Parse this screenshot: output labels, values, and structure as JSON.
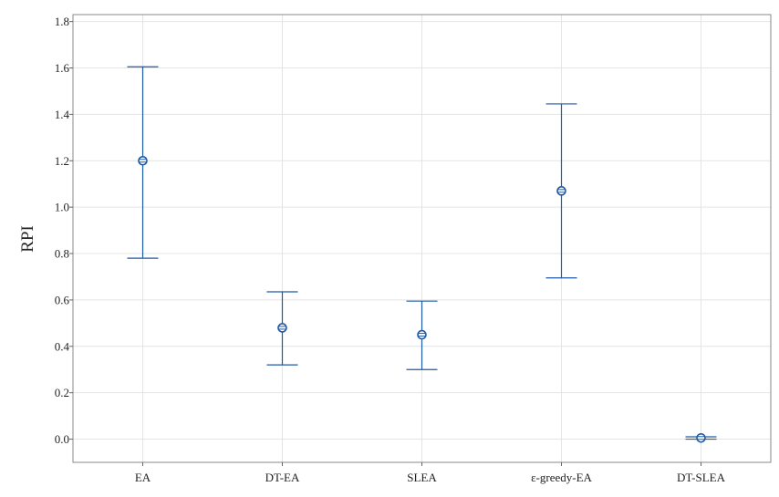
{
  "chart_data": {
    "type": "errorbar",
    "title": "",
    "xlabel": "",
    "ylabel": "RPI",
    "categories": [
      "EA",
      "DT-EA",
      "SLEA",
      "ε-greedy-EA",
      "DT-SLEA"
    ],
    "series": [
      {
        "values": [
          1.2,
          0.48,
          0.45,
          1.07,
          0.005
        ],
        "lower": [
          0.78,
          0.32,
          0.3,
          0.695,
          0.0
        ],
        "upper": [
          1.605,
          0.635,
          0.595,
          1.445,
          0.01
        ]
      }
    ],
    "ylim": [
      -0.1,
      1.83
    ],
    "yticks": [
      "0.0",
      "0.2",
      "0.4",
      "0.6",
      "0.8",
      "1.0",
      "1.2",
      "1.4",
      "1.6",
      "1.8"
    ],
    "grid": true,
    "legend": "none",
    "colors": {
      "series": "#1f5aa6",
      "grid": "#e4e4e4",
      "frame": "#888888"
    }
  }
}
